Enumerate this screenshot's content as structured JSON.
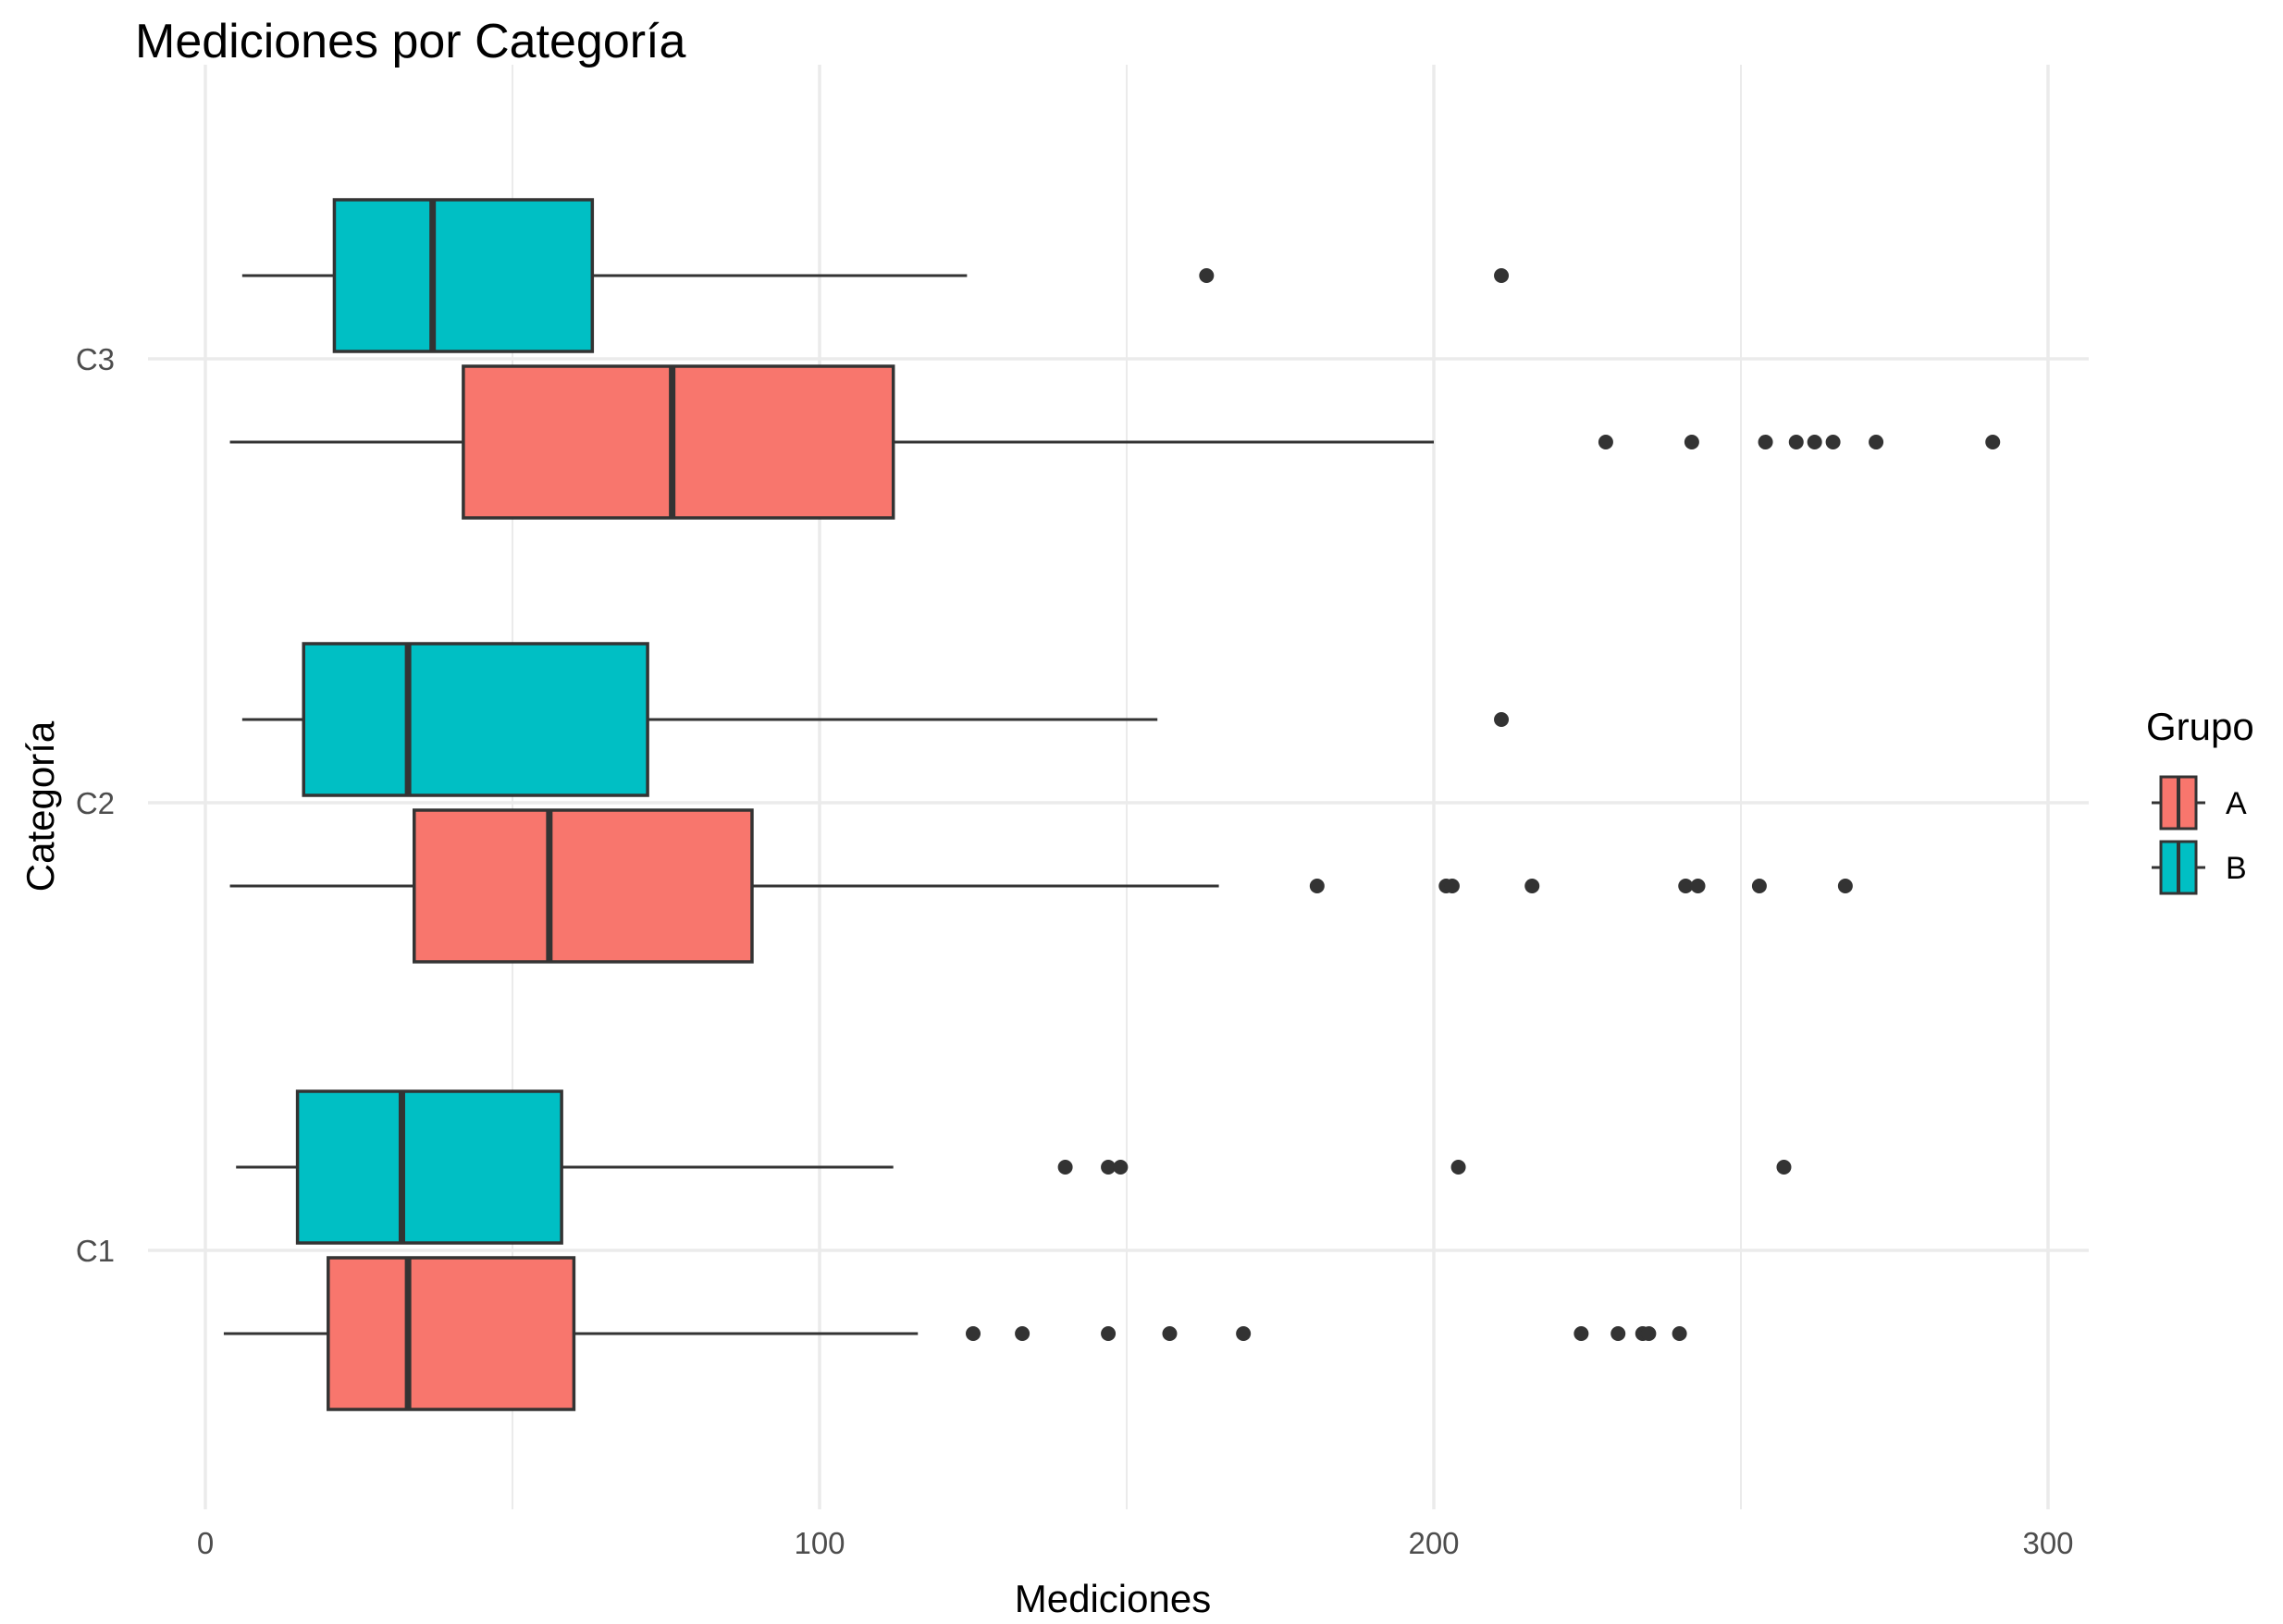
{
  "chart_data": {
    "type": "boxplot",
    "orientation": "horizontal",
    "title": "Mediciones por Categoría",
    "xlabel": "Mediciones",
    "ylabel": "Categoría",
    "xlim": [
      -8,
      303
    ],
    "x_ticks": [
      0,
      100,
      200,
      300
    ],
    "x_minor_ticks": [
      50,
      150,
      250
    ],
    "categories": [
      "C1",
      "C2",
      "C3"
    ],
    "grid": true,
    "legend": {
      "title": "Grupo",
      "position": "right",
      "entries": [
        {
          "label": "A",
          "color": "#F8766D"
        },
        {
          "label": "B",
          "color": "#00BFC4"
        }
      ]
    },
    "series": [
      {
        "name": "A",
        "color": "#F8766D",
        "boxes": [
          {
            "category": "C1",
            "whisker_low": 3,
            "q1": 20,
            "median": 33,
            "q3": 60,
            "whisker_high": 116,
            "outliers": [
              125,
              133,
              147,
              157,
              169,
              224,
              230,
              234,
              235,
              240
            ]
          },
          {
            "category": "C2",
            "whisker_low": 4,
            "q1": 34,
            "median": 56,
            "q3": 89,
            "whisker_high": 165,
            "outliers": [
              181,
              202,
              203,
              216,
              241,
              243,
              253,
              267
            ]
          },
          {
            "category": "C3",
            "whisker_low": 4,
            "q1": 42,
            "median": 76,
            "q3": 112,
            "whisker_high": 200,
            "outliers": [
              228,
              242,
              254,
              259,
              262,
              265,
              272,
              291
            ]
          }
        ]
      },
      {
        "name": "B",
        "color": "#00BFC4",
        "boxes": [
          {
            "category": "C1",
            "whisker_low": 5,
            "q1": 15,
            "median": 32,
            "q3": 58,
            "whisker_high": 112,
            "outliers": [
              140,
              147,
              149,
              204,
              257
            ]
          },
          {
            "category": "C2",
            "whisker_low": 6,
            "q1": 16,
            "median": 33,
            "q3": 72,
            "whisker_high": 155,
            "outliers": [
              211
            ]
          },
          {
            "category": "C3",
            "whisker_low": 6,
            "q1": 21,
            "median": 37,
            "q3": 63,
            "whisker_high": 124,
            "outliers": [
              163,
              211
            ]
          }
        ]
      }
    ]
  }
}
